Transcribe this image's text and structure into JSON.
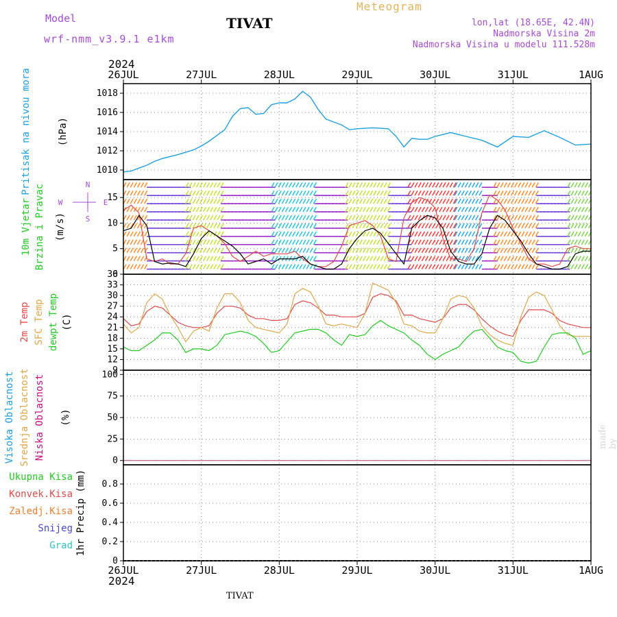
{
  "header": {
    "model_label": "Model",
    "model_run": "wrf-nmm_v3.9.1 e1km",
    "station": "TIVAT",
    "meteogram_label": "Meteogram",
    "location": "lon,lat (18.65E, 42.4N)",
    "altitude": "Nadmorska Visina 2m",
    "model_altitude": "Nadmorska Visina u modelu 111.528m"
  },
  "year": "2024",
  "footer_station": "TIVAT",
  "credit": "made by Angel",
  "colors": {
    "pressure": "#1ea0e6",
    "wind_speed": "#000000",
    "gust": "#e34a4a",
    "temp2m": "#e34a4a",
    "sfc_temp": "#e0a84a",
    "dewpoint": "#20cc20",
    "grid": "#888888"
  },
  "chart_data": [
    {
      "type": "line",
      "panel": "pressure",
      "ylabel_outer": "Pritisak na nivou mora",
      "ylabel_unit": "(hPa)",
      "x_ticks": [
        "26JUL",
        "27JUL",
        "28JUL",
        "29JUL",
        "30JUL",
        "31JUL",
        "1AUG"
      ],
      "ylim": [
        1009,
        1019
      ],
      "y_ticks": [
        "1010",
        "1012",
        "1014",
        "1016",
        "1018"
      ],
      "x_days": [
        0,
        0.1,
        0.2,
        0.3,
        0.4,
        0.5,
        0.7,
        0.9,
        1.0,
        1.1,
        1.3,
        1.4,
        1.5,
        1.6,
        1.7,
        1.8,
        1.9,
        2.0,
        2.1,
        2.2,
        2.3,
        2.4,
        2.5,
        2.6,
        2.7,
        2.8,
        2.9,
        3.0,
        3.2,
        3.4,
        3.5,
        3.6,
        3.7,
        3.8,
        3.9,
        4.0,
        4.2,
        4.4,
        4.6,
        4.8,
        5.0,
        5.2,
        5.4,
        5.6,
        5.8,
        6.0
      ],
      "series": [
        {
          "values": [
            1009.8,
            1009.9,
            1010.2,
            1010.5,
            1010.9,
            1011.2,
            1011.6,
            1012.1,
            1012.5,
            1013.0,
            1014.2,
            1015.6,
            1016.4,
            1016.5,
            1015.8,
            1015.9,
            1016.8,
            1017.0,
            1017.0,
            1017.4,
            1018.2,
            1017.6,
            1016.3,
            1015.3,
            1015.0,
            1014.7,
            1014.2,
            1014.3,
            1014.4,
            1014.3,
            1013.5,
            1012.4,
            1013.3,
            1013.2,
            1013.2,
            1013.5,
            1013.9,
            1013.5,
            1013.1,
            1012.4,
            1013.5,
            1013.4,
            1014.1,
            1013.4,
            1012.6,
            1012.7
          ]
        }
      ]
    },
    {
      "type": "line",
      "panel": "wind",
      "ylabel_outer_1": "10m Vjetar",
      "ylabel_outer_2": "Brzina i Pravac",
      "ylabel_unit": "(m/s)",
      "compass": [
        "N",
        "W",
        "E",
        "S"
      ],
      "ylim": [
        0,
        18.5
      ],
      "y_ticks": [
        "0",
        "5",
        "10",
        "15"
      ],
      "x_days": [
        0,
        0.1,
        0.2,
        0.3,
        0.4,
        0.5,
        0.6,
        0.7,
        0.8,
        0.9,
        1.0,
        1.1,
        1.2,
        1.3,
        1.4,
        1.5,
        1.6,
        1.7,
        1.8,
        1.9,
        2.0,
        2.1,
        2.2,
        2.3,
        2.4,
        2.5,
        2.6,
        2.7,
        2.8,
        2.9,
        3.0,
        3.1,
        3.2,
        3.3,
        3.4,
        3.5,
        3.6,
        3.7,
        3.8,
        3.9,
        4.0,
        4.1,
        4.2,
        4.3,
        4.4,
        4.5,
        4.6,
        4.7,
        4.8,
        4.9,
        5.0,
        5.1,
        5.2,
        5.3,
        5.4,
        5.5,
        5.6,
        5.7,
        5.8,
        5.9,
        6.0
      ],
      "series": [
        {
          "values": [
            8.5,
            9.0,
            11.5,
            9.5,
            2.5,
            2.0,
            2.2,
            2.0,
            1.5,
            4.0,
            7.0,
            8.5,
            7.5,
            6.5,
            5.5,
            4.0,
            2.0,
            2.5,
            3.0,
            2.0,
            3.0,
            3.0,
            3.0,
            3.5,
            2.0,
            1.5,
            1.0,
            1.0,
            2.0,
            5.0,
            7.0,
            8.5,
            9.0,
            8.0,
            6.0,
            4.0,
            2.0,
            9.0,
            10.5,
            11.5,
            11.0,
            9.0,
            4.5,
            2.5,
            2.0,
            2.0,
            4.0,
            9.0,
            11.5,
            10.5,
            8.5,
            6.5,
            4.0,
            2.0,
            1.5,
            1.0,
            1.0,
            1.5,
            4.0,
            4.5,
            4.5
          ]
        },
        {
          "values": [
            12.5,
            13.5,
            12.0,
            3.0,
            2.5,
            3.0,
            2.0,
            2.0,
            4.0,
            9.0,
            9.5,
            8.5,
            7.5,
            6.0,
            3.5,
            2.5,
            3.5,
            4.5,
            3.5,
            4.0,
            4.0,
            4.0,
            4.5,
            3.0,
            2.0,
            1.5,
            1.5,
            2.5,
            5.5,
            9.5,
            10.0,
            10.5,
            9.5,
            7.5,
            3.0,
            2.5,
            11.0,
            14.0,
            15.0,
            14.5,
            13.0,
            7.0,
            3.0,
            3.0,
            2.5,
            5.0,
            12.0,
            15.5,
            14.5,
            12.5,
            9.0,
            6.0,
            3.0,
            2.0,
            2.0,
            1.5,
            2.0,
            5.0,
            5.5,
            5.0,
            5.0
          ]
        }
      ],
      "arrow_colors": [
        "#23c4e0",
        "#27a8e8",
        "#3f78e8",
        "#6a3cd8",
        "#9a24c8",
        "#7cd44a",
        "#c8e030",
        "#f5d020",
        "#ff8c28",
        "#ff3a3a"
      ]
    },
    {
      "type": "line",
      "panel": "temperature",
      "ylabel_outer_1": "2m Temp",
      "ylabel_outer_2": "SFC Temp",
      "ylabel_outer_3": "dewpt Temp",
      "ylabel_unit": "(C)",
      "ylim": [
        9,
        36
      ],
      "y_ticks": [
        "9",
        "12",
        "15",
        "18",
        "21",
        "24",
        "27",
        "30",
        "33",
        "36"
      ],
      "x_days": [
        0,
        0.1,
        0.2,
        0.3,
        0.4,
        0.5,
        0.6,
        0.7,
        0.8,
        0.9,
        1.0,
        1.1,
        1.2,
        1.3,
        1.4,
        1.5,
        1.6,
        1.7,
        1.8,
        1.9,
        2.0,
        2.1,
        2.2,
        2.3,
        2.4,
        2.5,
        2.6,
        2.7,
        2.8,
        2.9,
        3.0,
        3.1,
        3.2,
        3.3,
        3.4,
        3.5,
        3.6,
        3.7,
        3.8,
        3.9,
        4.0,
        4.1,
        4.2,
        4.3,
        4.4,
        4.5,
        4.6,
        4.7,
        4.8,
        4.9,
        5.0,
        5.1,
        5.2,
        5.3,
        5.4,
        5.5,
        5.6,
        5.7,
        5.8,
        5.9,
        6.0
      ],
      "series": [
        {
          "values": [
            23.5,
            21.5,
            22.0,
            25.5,
            27.0,
            26.5,
            24.5,
            22.5,
            21.5,
            21.0,
            21.0,
            21.5,
            25.0,
            27.0,
            27.0,
            26.5,
            24.5,
            23.5,
            23.5,
            23.0,
            23.0,
            23.5,
            27.5,
            28.5,
            28.0,
            26.5,
            24.5,
            24.5,
            24.0,
            24.0,
            24.0,
            25.0,
            29.5,
            30.5,
            30.0,
            28.5,
            24.5,
            24.5,
            23.5,
            23.0,
            22.5,
            23.5,
            26.5,
            27.5,
            27.5,
            26.0,
            23.5,
            21.5,
            20.0,
            19.0,
            18.5,
            23.0,
            26.0,
            26.0,
            26.0,
            25.0,
            23.0,
            22.0,
            21.5,
            21.0,
            21.0
          ]
        },
        {
          "values": [
            22.0,
            19.5,
            21.0,
            28.0,
            30.5,
            29.0,
            24.5,
            21.0,
            17.0,
            20.0,
            21.0,
            20.0,
            26.5,
            30.5,
            30.5,
            28.0,
            23.0,
            21.0,
            20.5,
            20.0,
            19.5,
            22.0,
            30.5,
            32.0,
            31.0,
            27.0,
            22.0,
            21.5,
            22.0,
            21.5,
            21.0,
            25.0,
            33.5,
            32.5,
            31.5,
            28.0,
            22.0,
            21.5,
            20.0,
            19.5,
            19.5,
            23.5,
            29.0,
            30.0,
            29.5,
            26.5,
            21.5,
            19.0,
            17.5,
            16.5,
            16.0,
            24.0,
            29.5,
            31.0,
            30.0,
            26.0,
            21.5,
            19.0,
            18.5,
            18.5,
            18.5
          ]
        },
        {
          "values": [
            15.5,
            14.5,
            14.5,
            16.0,
            17.5,
            19.5,
            19.5,
            17.5,
            14.0,
            15.0,
            15.0,
            14.5,
            16.0,
            19.0,
            19.5,
            20.0,
            19.5,
            18.5,
            16.5,
            14.0,
            14.5,
            17.0,
            19.5,
            20.0,
            20.5,
            20.5,
            19.5,
            17.5,
            16.0,
            19.0,
            18.5,
            19.0,
            21.5,
            23.0,
            21.5,
            20.5,
            19.5,
            17.5,
            16.0,
            13.5,
            12.0,
            13.5,
            14.5,
            15.5,
            18.0,
            20.0,
            20.5,
            18.0,
            15.5,
            14.5,
            14.0,
            11.5,
            11.0,
            11.5,
            15.5,
            19.0,
            19.5,
            19.5,
            18.0,
            13.5,
            14.5
          ]
        }
      ]
    },
    {
      "type": "line",
      "panel": "cloud",
      "ylabel_outer_1": "Visoka Oblacnost",
      "ylabel_outer_2": "Srednja Oblacnost",
      "ylabel_outer_3": "Niska Oblacnost",
      "ylabel_unit": "(%)",
      "ylim": [
        -5,
        105
      ],
      "y_ticks": [
        "0",
        "25",
        "50",
        "75",
        "100"
      ],
      "series_values": [
        0,
        0,
        0,
        0,
        0,
        0,
        0
      ]
    },
    {
      "type": "bar",
      "panel": "precip",
      "legend": [
        "Ukupna Kisa",
        "Konvek.Kisa",
        "Zaledj.Kisa",
        "Snijeg",
        "Grad"
      ],
      "legend_colors": [
        "#20cc20",
        "#e34a4a",
        "#f08030",
        "#4848d8",
        "#30c8c0"
      ],
      "ylabel_unit": "1hr Precip (mm)",
      "ylim": [
        0,
        1.0
      ],
      "y_ticks": [
        "0",
        "0.2",
        "0.4",
        "0.6",
        "0.8"
      ],
      "x_ticks": [
        "26JUL",
        "27JUL",
        "28JUL",
        "29JUL",
        "30JUL",
        "31JUL",
        "1AUG"
      ],
      "values": [
        0,
        0,
        0,
        0,
        0,
        0,
        0
      ]
    }
  ]
}
